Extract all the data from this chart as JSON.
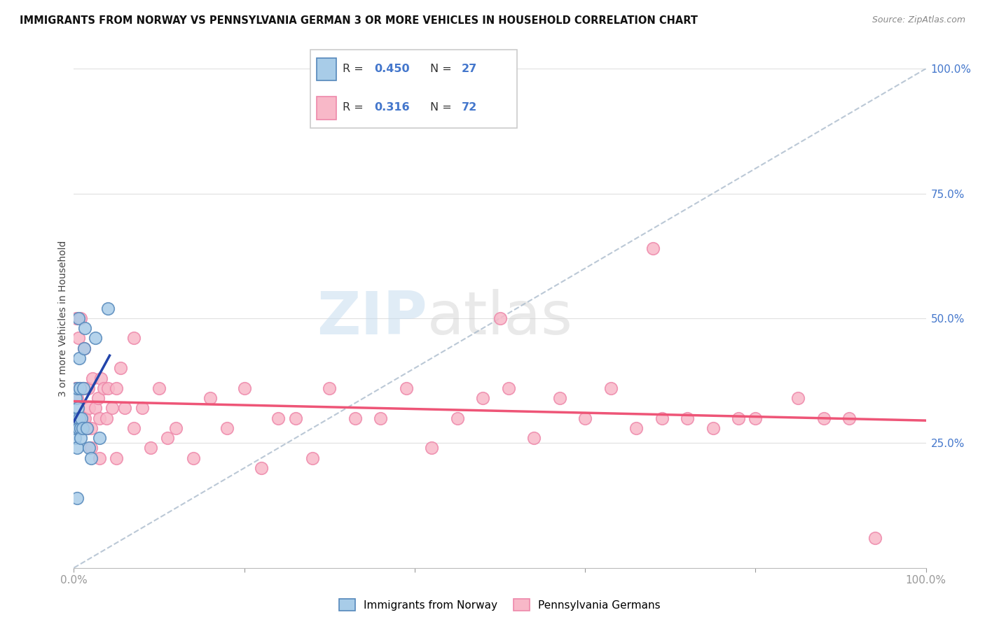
{
  "title": "IMMIGRANTS FROM NORWAY VS PENNSYLVANIA GERMAN 3 OR MORE VEHICLES IN HOUSEHOLD CORRELATION CHART",
  "source": "Source: ZipAtlas.com",
  "ylabel": "3 or more Vehicles in Household",
  "legend_label1": "Immigrants from Norway",
  "legend_label2": "Pennsylvania Germans",
  "R1": "0.450",
  "N1": "27",
  "R2": "0.316",
  "N2": "72",
  "color_norway_face": "#a8cce8",
  "color_norway_edge": "#5588bb",
  "color_pa_face": "#f8b8c8",
  "color_pa_edge": "#ee88aa",
  "color_norway_line": "#2244aa",
  "color_pa_line": "#ee5577",
  "color_diag": "#aabbcc",
  "norway_x": [
    0.1,
    0.15,
    0.2,
    0.25,
    0.3,
    0.35,
    0.4,
    0.45,
    0.5,
    0.55,
    0.6,
    0.65,
    0.7,
    0.75,
    0.8,
    0.9,
    1.0,
    1.1,
    1.2,
    1.3,
    1.5,
    1.8,
    2.0,
    2.5,
    3.0,
    4.0,
    0.4
  ],
  "norway_y": [
    30,
    26,
    34,
    28,
    30,
    24,
    36,
    32,
    50,
    28,
    42,
    30,
    36,
    28,
    26,
    30,
    28,
    36,
    44,
    48,
    28,
    24,
    22,
    46,
    26,
    52,
    14
  ],
  "pa_x": [
    0.2,
    0.3,
    0.4,
    0.5,
    0.6,
    0.7,
    0.8,
    0.9,
    1.0,
    1.1,
    1.2,
    1.3,
    1.4,
    1.5,
    1.6,
    1.7,
    1.8,
    2.0,
    2.2,
    2.5,
    2.8,
    3.0,
    3.2,
    3.5,
    3.8,
    4.0,
    4.5,
    5.0,
    5.5,
    6.0,
    7.0,
    8.0,
    9.0,
    10.0,
    11.0,
    12.0,
    14.0,
    16.0,
    18.0,
    20.0,
    22.0,
    24.0,
    26.0,
    28.0,
    30.0,
    33.0,
    36.0,
    39.0,
    42.0,
    45.0,
    48.0,
    51.0,
    54.0,
    57.0,
    60.0,
    63.0,
    66.0,
    69.0,
    72.0,
    75.0,
    78.0,
    80.0,
    85.0,
    88.0,
    91.0,
    94.0,
    2.0,
    3.0,
    5.0,
    7.0,
    50.0,
    68.0
  ],
  "pa_y": [
    36,
    50,
    34,
    46,
    36,
    28,
    50,
    30,
    36,
    30,
    44,
    30,
    28,
    36,
    28,
    36,
    32,
    28,
    38,
    32,
    34,
    30,
    38,
    36,
    30,
    36,
    32,
    36,
    40,
    32,
    46,
    32,
    24,
    36,
    26,
    28,
    22,
    34,
    28,
    36,
    20,
    30,
    30,
    22,
    36,
    30,
    30,
    36,
    24,
    30,
    34,
    36,
    26,
    34,
    30,
    36,
    28,
    30,
    30,
    28,
    30,
    30,
    34,
    30,
    30,
    6,
    24,
    22,
    22,
    28,
    50,
    64
  ],
  "xlim": [
    0,
    100
  ],
  "ylim": [
    0,
    100
  ],
  "background_color": "#ffffff",
  "grid_color": "#e0e0e0",
  "watermark_zip_color": "#c8ddf0",
  "watermark_atlas_color": "#d0d0d0"
}
